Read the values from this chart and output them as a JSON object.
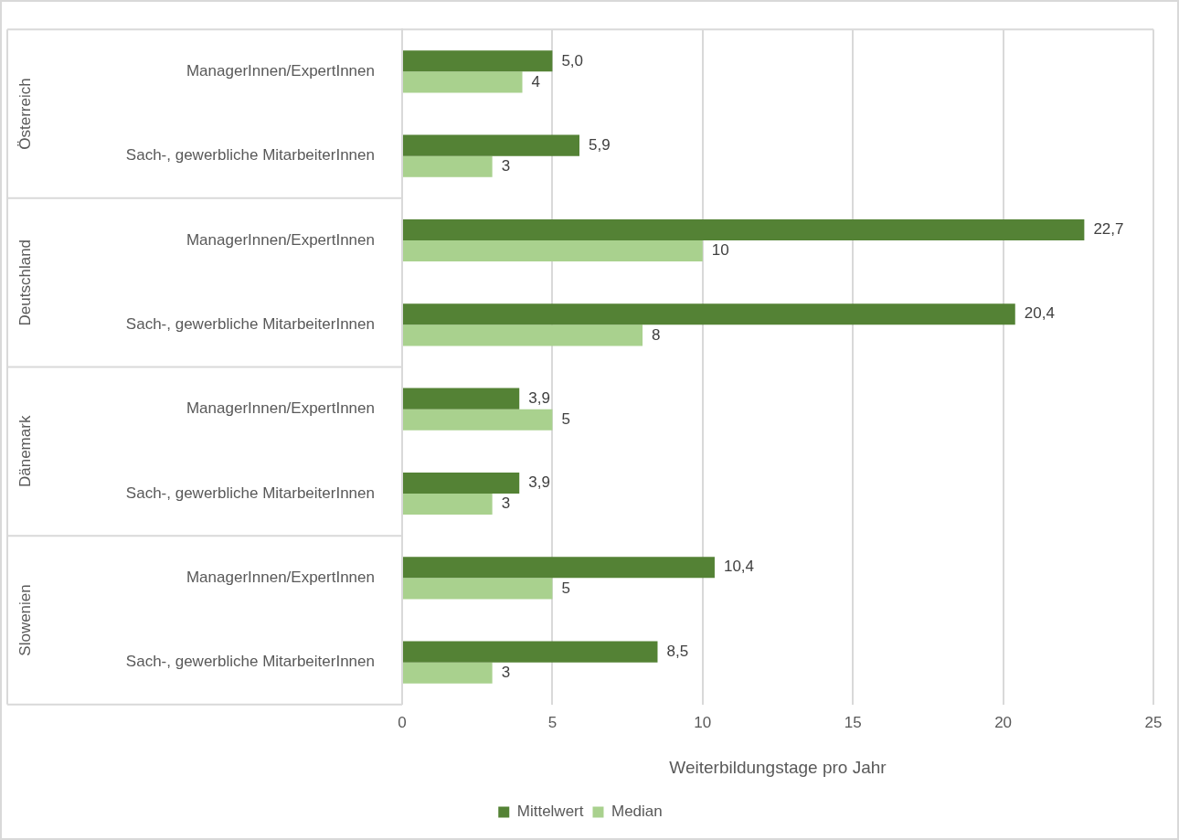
{
  "chart_data": {
    "type": "bar",
    "orientation": "horizontal",
    "xlabel": "Weiterbildungstage pro Jahr",
    "categories": [
      "ManagerInnen/ExpertInnen",
      "Sach-, gewerbliche MitarbeiterInnen",
      "ManagerInnen/ExpertInnen",
      "Sach-, gewerbliche MitarbeiterInnen",
      "ManagerInnen/ExpertInnen",
      "Sach-, gewerbliche MitarbeiterInnen",
      "ManagerInnen/ExpertInnen",
      "Sach-, gewerbliche MitarbeiterInnen"
    ],
    "annotations": [
      "Österreich",
      "Deutschland",
      "Dänemark",
      "Slowenien"
    ],
    "series": [
      {
        "name": "Mittelwert",
        "color": "#548235",
        "values": [
          5.0,
          5.9,
          22.7,
          20.4,
          3.9,
          3.9,
          10.4,
          8.5
        ],
        "value_labels": [
          "5,0",
          "5,9",
          "22,7",
          "20,4",
          "3,9",
          "3,9",
          "10,4",
          "8,5"
        ]
      },
      {
        "name": "Median",
        "color": "#a9d18e",
        "values": [
          4,
          3,
          10,
          8,
          5,
          3,
          5,
          3
        ],
        "value_labels": [
          "4",
          "3",
          "10",
          "8",
          "5",
          "3",
          "5",
          "3"
        ]
      }
    ],
    "xlim": [
      0,
      25
    ],
    "xticks": [
      0,
      5,
      10,
      15,
      20,
      25
    ],
    "grid": "x",
    "legend": "bottom"
  }
}
